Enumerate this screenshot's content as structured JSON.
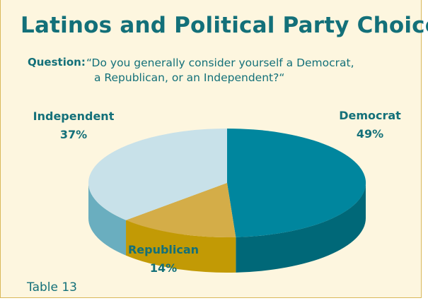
{
  "title": "Latinos and Political Party Choice",
  "question": {
    "label": "Question:",
    "line1": "“Do you generally consider yourself a Democrat,",
    "line2": "a Republican, or an Independent?“"
  },
  "caption": "Table 13",
  "colors": {
    "background": "#fdf6df",
    "text": "#137079",
    "democrat_top": "#00869e",
    "democrat_side": "#006878",
    "republican_top": "#d4ad48",
    "republican_side": "#c29a05",
    "independent_top": "#c8e1e9",
    "independent_side": "#6aaebf"
  },
  "chart_data": {
    "type": "pie",
    "title": "Latinos and Political Party Choice",
    "labels": [
      "Democrat",
      "Republican",
      "Independent"
    ],
    "values": [
      49,
      14,
      37
    ],
    "value_labels": [
      "49%",
      "14%",
      "37%"
    ],
    "style": "3d"
  }
}
